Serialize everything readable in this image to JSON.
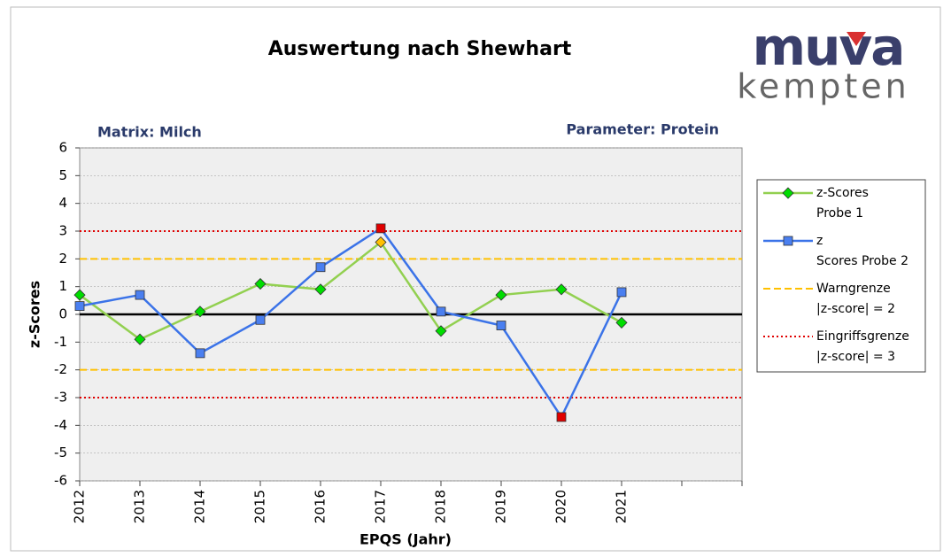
{
  "chart_data": {
    "type": "line",
    "title": "Auswertung nach Shewhart",
    "logo": {
      "brand": "muva",
      "place": "kempten"
    },
    "subtitle_left": "Matrix: Milch",
    "subtitle_right": "Parameter: Protein",
    "ylabel": "z-Scores",
    "xlabel": "EPQS (Jahr)",
    "categories": [
      "2012",
      "2013",
      "2014",
      "2015",
      "2016",
      "2017",
      "2018",
      "2019",
      "2020",
      "2021",
      null,
      null
    ],
    "series": [
      {
        "name": "z-Scores Probe 1",
        "color": "#92d050",
        "marker": "diamond",
        "marker_color": "#00dd00",
        "values": [
          0.7,
          -0.9,
          0.1,
          1.1,
          0.9,
          2.6,
          -0.6,
          0.7,
          0.9,
          -0.3,
          null,
          null
        ]
      },
      {
        "name": "z Scores Probe 2",
        "color": "#3b73e8",
        "marker": "square",
        "marker_color": "#4a7ff0",
        "values": [
          0.3,
          0.7,
          -1.4,
          -0.2,
          1.7,
          3.1,
          0.1,
          -0.4,
          -3.7,
          0.8,
          null,
          null
        ]
      }
    ],
    "limits": [
      {
        "name": "Warngrenze |z-score| = 2",
        "color": "#ffc000",
        "style": "dashed",
        "values": [
          2,
          -2
        ]
      },
      {
        "name": "Eingriffsgrenze |z-score| = 3",
        "color": "#e00000",
        "style": "dotted",
        "values": [
          3,
          -3
        ]
      }
    ],
    "ylim": [
      -6,
      6
    ],
    "yticks": [
      -6,
      -5,
      -4,
      -3,
      -2,
      -1,
      0,
      1,
      2,
      3,
      4,
      5,
      6
    ],
    "grid": true,
    "legend": "right"
  }
}
